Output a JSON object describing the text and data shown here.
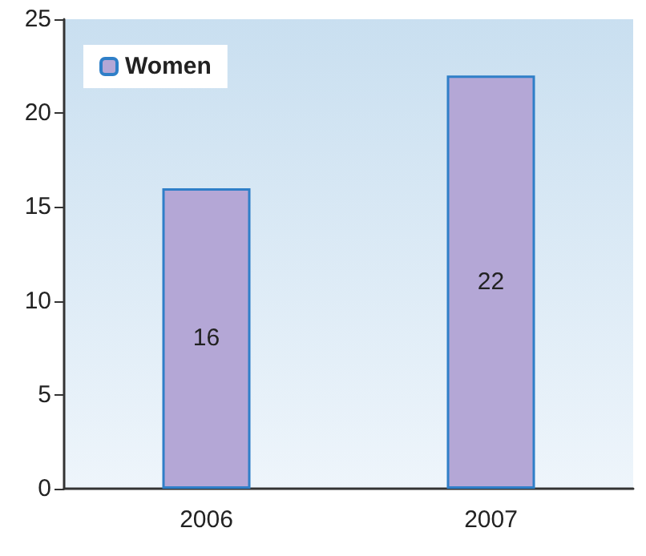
{
  "chart_data": {
    "type": "bar",
    "categories": [
      "2006",
      "2007"
    ],
    "series": [
      {
        "name": "Women",
        "color": "#b4a7d6",
        "values": [
          16,
          22
        ]
      }
    ],
    "ylim": [
      0,
      25
    ],
    "yticks": [
      0,
      5,
      10,
      15,
      20,
      25
    ],
    "grid": false,
    "legend": "top left",
    "data_labels": true
  }
}
